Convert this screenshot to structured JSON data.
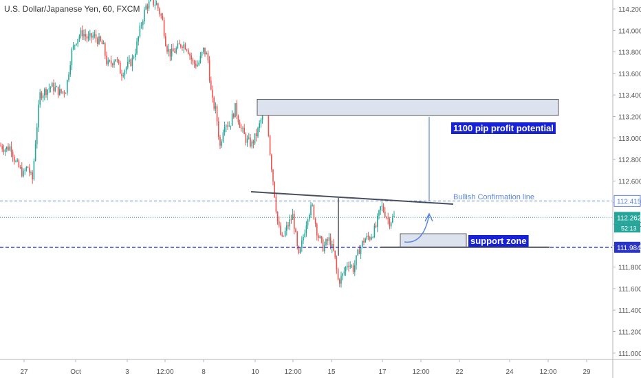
{
  "symbol_title": "U.S. Dollar/Japanese Yen, 60, FXCM",
  "colors": {
    "up": "#26a69a",
    "down": "#ef5350",
    "support_line": "#2b35c8",
    "confirmation_line": "#5c86e0",
    "last_price_line": "#26a69a",
    "zone_fill": "#dde2ef",
    "zone_stroke": "#555555",
    "label_bg": "#1722d6",
    "label_text": "#ffffff"
  },
  "chart_data": {
    "type": "candlestick",
    "title": "U.S. Dollar/Japanese Yen, 60, FXCM",
    "ylim": [
      110.95,
      114.25
    ],
    "y_ticks": [
      "114.200",
      "114.000",
      "113.800",
      "113.600",
      "113.400",
      "113.200",
      "113.000",
      "112.800",
      "112.600",
      "112.400",
      "112.200",
      "112.000",
      "111.800",
      "111.600",
      "111.400",
      "111.200",
      "111.000"
    ],
    "x_ticks": [
      "27",
      "Oct",
      "3",
      "12:00",
      "8",
      "10",
      "12:00",
      "15",
      "17",
      "12:00",
      "22",
      "24",
      "12:00",
      "29"
    ],
    "close_path": [
      {
        "x": 0,
        "y": 112.93
      },
      {
        "x": 8,
        "y": 112.9
      },
      {
        "x": 16,
        "y": 112.92
      },
      {
        "x": 22,
        "y": 112.78
      },
      {
        "x": 28,
        "y": 112.72
      },
      {
        "x": 34,
        "y": 112.66
      },
      {
        "x": 40,
        "y": 112.74
      },
      {
        "x": 47,
        "y": 112.6
      },
      {
        "x": 52,
        "y": 113.0
      },
      {
        "x": 58,
        "y": 113.4
      },
      {
        "x": 66,
        "y": 113.44
      },
      {
        "x": 74,
        "y": 113.48
      },
      {
        "x": 80,
        "y": 113.46
      },
      {
        "x": 88,
        "y": 113.42
      },
      {
        "x": 96,
        "y": 113.45
      },
      {
        "x": 104,
        "y": 113.8
      },
      {
        "x": 112,
        "y": 113.93
      },
      {
        "x": 120,
        "y": 113.98
      },
      {
        "x": 128,
        "y": 113.92
      },
      {
        "x": 136,
        "y": 113.95
      },
      {
        "x": 144,
        "y": 113.9
      },
      {
        "x": 150,
        "y": 113.86
      },
      {
        "x": 156,
        "y": 113.68
      },
      {
        "x": 162,
        "y": 113.7
      },
      {
        "x": 168,
        "y": 113.75
      },
      {
        "x": 176,
        "y": 113.6
      },
      {
        "x": 184,
        "y": 113.66
      },
      {
        "x": 192,
        "y": 113.72
      },
      {
        "x": 198,
        "y": 113.84
      },
      {
        "x": 205,
        "y": 114.05
      },
      {
        "x": 212,
        "y": 114.22
      },
      {
        "x": 220,
        "y": 114.27
      },
      {
        "x": 228,
        "y": 114.24
      },
      {
        "x": 236,
        "y": 114.1
      },
      {
        "x": 242,
        "y": 113.85
      },
      {
        "x": 248,
        "y": 113.78
      },
      {
        "x": 256,
        "y": 113.82
      },
      {
        "x": 264,
        "y": 113.88
      },
      {
        "x": 272,
        "y": 113.85
      },
      {
        "x": 280,
        "y": 113.7
      },
      {
        "x": 288,
        "y": 113.68
      },
      {
        "x": 296,
        "y": 113.82
      },
      {
        "x": 302,
        "y": 113.75
      },
      {
        "x": 308,
        "y": 113.35
      },
      {
        "x": 314,
        "y": 113.25
      },
      {
        "x": 320,
        "y": 112.92
      },
      {
        "x": 326,
        "y": 113.15
      },
      {
        "x": 334,
        "y": 113.12
      },
      {
        "x": 342,
        "y": 113.28
      },
      {
        "x": 350,
        "y": 113.1
      },
      {
        "x": 358,
        "y": 112.98
      },
      {
        "x": 366,
        "y": 112.94
      },
      {
        "x": 374,
        "y": 113.05
      },
      {
        "x": 382,
        "y": 113.22
      },
      {
        "x": 388,
        "y": 113.28
      },
      {
        "x": 392,
        "y": 112.9
      },
      {
        "x": 398,
        "y": 112.55
      },
      {
        "x": 404,
        "y": 112.2
      },
      {
        "x": 410,
        "y": 112.05
      },
      {
        "x": 418,
        "y": 112.18
      },
      {
        "x": 426,
        "y": 112.28
      },
      {
        "x": 434,
        "y": 111.88
      },
      {
        "x": 440,
        "y": 112.05
      },
      {
        "x": 448,
        "y": 112.3
      },
      {
        "x": 454,
        "y": 112.36
      },
      {
        "x": 462,
        "y": 112.1
      },
      {
        "x": 470,
        "y": 111.98
      },
      {
        "x": 478,
        "y": 112.06
      },
      {
        "x": 486,
        "y": 111.92
      },
      {
        "x": 492,
        "y": 111.66
      },
      {
        "x": 498,
        "y": 111.72
      },
      {
        "x": 506,
        "y": 111.85
      },
      {
        "x": 514,
        "y": 111.78
      },
      {
        "x": 522,
        "y": 111.96
      },
      {
        "x": 530,
        "y": 112.06
      },
      {
        "x": 538,
        "y": 112.08
      },
      {
        "x": 546,
        "y": 112.16
      },
      {
        "x": 554,
        "y": 112.37
      },
      {
        "x": 560,
        "y": 112.3
      },
      {
        "x": 566,
        "y": 112.22
      },
      {
        "x": 572,
        "y": 112.262
      }
    ],
    "levels": {
      "last_price": 112.262,
      "countdown": "52:13",
      "bullish_confirmation": 112.415,
      "support": 111.984
    },
    "annotations": {
      "target_zone": {
        "y_top": 113.36,
        "y_bottom": 113.21
      },
      "target_label": "1100 pip profit potential",
      "confirmation_label": "Bullish Confirmation line",
      "support_zone": {
        "y_top": 112.11,
        "y_bottom": 111.985
      },
      "support_label": "support zone"
    }
  }
}
